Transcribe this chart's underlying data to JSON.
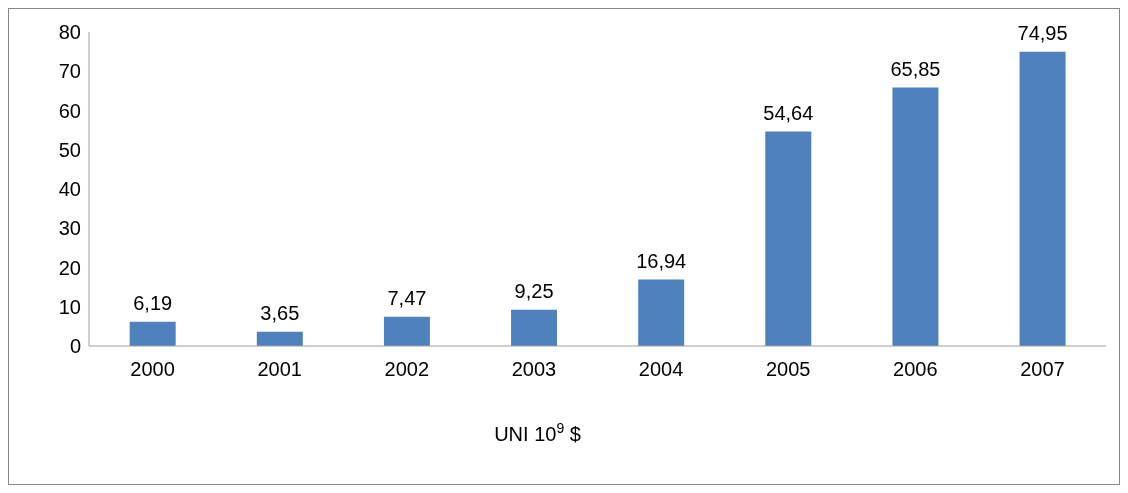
{
  "chart_data": {
    "type": "bar",
    "xlabel": "UNI  10$^{9}$  $",
    "categories": [
      "2000",
      "2001",
      "2002",
      "2003",
      "2004",
      "2005",
      "2006",
      "2007"
    ],
    "values": [
      6.19,
      3.65,
      7.47,
      9.25,
      16.94,
      54.64,
      65.85,
      74.95
    ],
    "value_labels": [
      "6,19",
      "3,65",
      "7,47",
      "9,25",
      "16,94",
      "54,64",
      "65,85",
      "74,95"
    ],
    "color": "#4f81bd",
    "ylim": [
      0,
      80
    ],
    "yticks": [
      0,
      10,
      20,
      30,
      40,
      50,
      60,
      70,
      80
    ],
    "grid": false,
    "legend": false
  }
}
